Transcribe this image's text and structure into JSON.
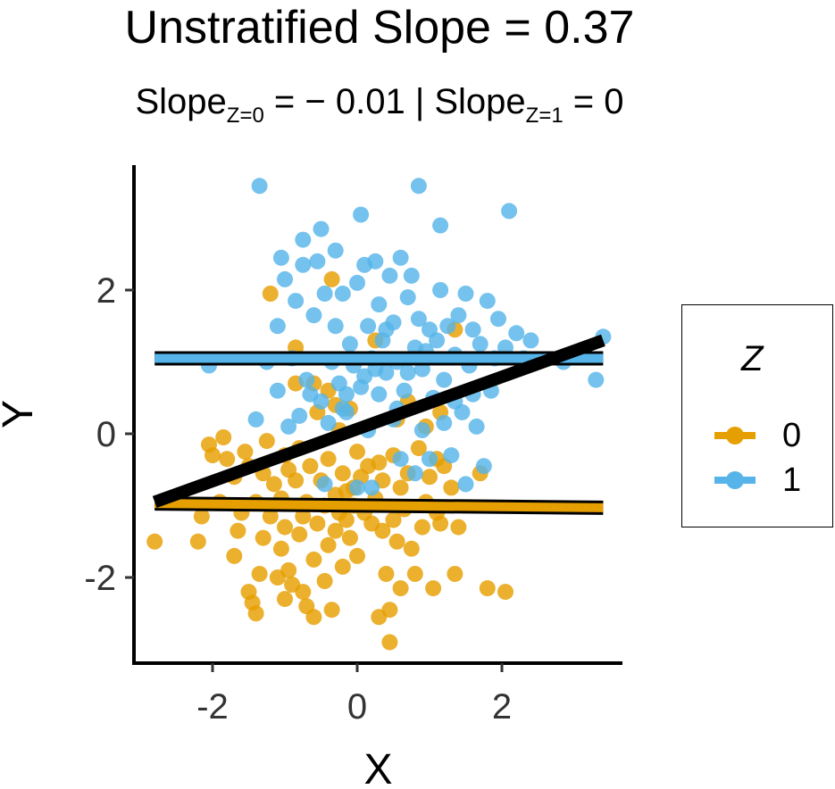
{
  "title": "Unstratified Slope = 0.37",
  "subtitle": {
    "part1": "Slope",
    "sub1": "Z=0",
    "part2": " = − 0.01 | Slope",
    "sub2": "Z=1",
    "part3": " = 0"
  },
  "legend": {
    "title": "Z",
    "items": [
      {
        "label": "0",
        "color": "#E69F00"
      },
      {
        "label": "1",
        "color": "#56B4E9"
      }
    ]
  },
  "chart_data": {
    "type": "scatter",
    "xlabel": "X",
    "ylabel": "Y",
    "xlim": [
      -3.1,
      3.6
    ],
    "ylim": [
      -3.2,
      3.7
    ],
    "xticks": [
      -2,
      0,
      2
    ],
    "yticks": [
      -2,
      0,
      2
    ],
    "xtick_labels": [
      "-2",
      "0",
      "2"
    ],
    "ytick_labels": [
      "-2",
      "0",
      "2"
    ],
    "grid": false,
    "legend_position": "right",
    "series": [
      {
        "name": "0",
        "color": "#E69F00",
        "points": [
          [
            -2.8,
            -1.5
          ],
          [
            -2.2,
            -1.5
          ],
          [
            -2.15,
            -1.15
          ],
          [
            -2.05,
            -0.15
          ],
          [
            -2.0,
            -0.3
          ],
          [
            -1.9,
            -0.95
          ],
          [
            -1.85,
            -0.05
          ],
          [
            -1.8,
            -0.35
          ],
          [
            -1.7,
            -1.7
          ],
          [
            -1.7,
            -0.6
          ],
          [
            -1.65,
            -1.35
          ],
          [
            -1.6,
            -1.1
          ],
          [
            -1.55,
            -0.25
          ],
          [
            -1.5,
            -0.45
          ],
          [
            -1.5,
            -2.2
          ],
          [
            -1.45,
            -2.35
          ],
          [
            -1.4,
            -2.5
          ],
          [
            -1.4,
            -0.95
          ],
          [
            -1.35,
            -1.95
          ],
          [
            -1.3,
            -0.55
          ],
          [
            -1.3,
            -1.45
          ],
          [
            -1.25,
            -0.1
          ],
          [
            -1.2,
            -1.15
          ],
          [
            -1.15,
            -0.7
          ],
          [
            -1.1,
            -2.0
          ],
          [
            -1.05,
            -1.6
          ],
          [
            -1.05,
            -0.9
          ],
          [
            -1.0,
            -0.3
          ],
          [
            -1.0,
            -1.3
          ],
          [
            -1.0,
            -2.3
          ],
          [
            -0.95,
            -0.5
          ],
          [
            -0.95,
            -1.9
          ],
          [
            -0.9,
            -2.1
          ],
          [
            -0.85,
            0.7
          ],
          [
            -0.85,
            -0.65
          ],
          [
            -0.8,
            -1.4
          ],
          [
            -0.8,
            -0.2
          ],
          [
            -0.75,
            -2.2
          ],
          [
            -0.75,
            -1.15
          ],
          [
            -0.7,
            -0.95
          ],
          [
            -0.7,
            -2.4
          ],
          [
            -0.65,
            -0.45
          ],
          [
            -0.6,
            -1.75
          ],
          [
            -0.6,
            -2.55
          ],
          [
            -0.55,
            0.3
          ],
          [
            -0.55,
            -1.25
          ],
          [
            -0.5,
            -0.65
          ],
          [
            -0.45,
            -1.0
          ],
          [
            -0.45,
            -2.05
          ],
          [
            -0.4,
            0.6
          ],
          [
            -0.4,
            -0.35
          ],
          [
            -0.4,
            -1.55
          ],
          [
            -0.35,
            -2.45
          ],
          [
            -0.3,
            -1.35
          ],
          [
            -0.3,
            -0.85
          ],
          [
            -0.25,
            0.05
          ],
          [
            -0.25,
            -1.1
          ],
          [
            -0.2,
            -1.85
          ],
          [
            -0.2,
            -0.55
          ],
          [
            -0.15,
            -1.2
          ],
          [
            -0.15,
            -0.8
          ],
          [
            -0.1,
            -1.45
          ],
          [
            -0.05,
            -0.75
          ],
          [
            -0.05,
            -1.0
          ],
          [
            0.0,
            -0.25
          ],
          [
            0.0,
            -1.7
          ],
          [
            0.05,
            -0.6
          ],
          [
            0.1,
            -1.1
          ],
          [
            0.15,
            -0.45
          ],
          [
            0.2,
            -1.25
          ],
          [
            0.25,
            -0.9
          ],
          [
            0.3,
            -2.55
          ],
          [
            0.35,
            -1.35
          ],
          [
            0.35,
            -0.65
          ],
          [
            0.4,
            -1.95
          ],
          [
            0.45,
            -2.45
          ],
          [
            0.5,
            -1.2
          ],
          [
            0.5,
            -0.3
          ],
          [
            0.55,
            -1.5
          ],
          [
            0.6,
            -0.75
          ],
          [
            0.6,
            -2.15
          ],
          [
            0.65,
            -1.05
          ],
          [
            0.7,
            -0.55
          ],
          [
            0.75,
            -1.6
          ],
          [
            0.8,
            -1.95
          ],
          [
            0.85,
            -0.2
          ],
          [
            0.9,
            -1.3
          ],
          [
            0.95,
            -0.95
          ],
          [
            1.0,
            -0.6
          ],
          [
            1.05,
            -2.15
          ],
          [
            1.1,
            -1.1
          ],
          [
            1.15,
            -1.25
          ],
          [
            1.2,
            -0.45
          ],
          [
            1.3,
            -0.75
          ],
          [
            1.35,
            -1.95
          ],
          [
            1.4,
            -1.3
          ],
          [
            1.7,
            -0.55
          ],
          [
            1.8,
            -2.15
          ],
          [
            2.05,
            -2.2
          ],
          [
            -1.2,
            1.95
          ],
          [
            -0.6,
            0.7
          ],
          [
            -0.35,
            2.15
          ],
          [
            -0.85,
            1.2
          ],
          [
            0.45,
            -2.9
          ],
          [
            0.25,
            1.3
          ],
          [
            0.55,
            0.2
          ],
          [
            0.7,
            0.45
          ],
          [
            0.3,
            -0.4
          ],
          [
            -0.3,
            0.4
          ],
          [
            1.35,
            1.45
          ],
          [
            1.15,
            0.3
          ],
          [
            -0.1,
            0.35
          ],
          [
            0.95,
            0.1
          ],
          [
            1.1,
            -0.35
          ]
        ]
      },
      {
        "name": "1",
        "color": "#56B4E9",
        "points": [
          [
            -2.05,
            0.95
          ],
          [
            -1.4,
            0.2
          ],
          [
            -1.35,
            3.45
          ],
          [
            -1.25,
            1.0
          ],
          [
            -1.1,
            0.6
          ],
          [
            -1.1,
            1.5
          ],
          [
            -1.05,
            2.45
          ],
          [
            -1.0,
            2.15
          ],
          [
            -0.95,
            0.1
          ],
          [
            -0.85,
            1.85
          ],
          [
            -0.8,
            0.25
          ],
          [
            -0.75,
            2.7
          ],
          [
            -0.75,
            2.35
          ],
          [
            -0.7,
            0.75
          ],
          [
            -0.65,
            0.55
          ],
          [
            -0.6,
            1.65
          ],
          [
            -0.55,
            2.4
          ],
          [
            -0.5,
            2.85
          ],
          [
            -0.5,
            0.45
          ],
          [
            -0.45,
            1.95
          ],
          [
            -0.4,
            0.15
          ],
          [
            -0.35,
            1.0
          ],
          [
            -0.3,
            2.55
          ],
          [
            -0.25,
            0.7
          ],
          [
            -0.2,
            1.95
          ],
          [
            -0.15,
            0.3
          ],
          [
            -0.1,
            1.25
          ],
          [
            -0.05,
            0.95
          ],
          [
            0.0,
            2.1
          ],
          [
            0.05,
            0.65
          ],
          [
            0.05,
            3.05
          ],
          [
            0.1,
            2.35
          ],
          [
            0.15,
            1.5
          ],
          [
            0.15,
            0.05
          ],
          [
            0.2,
            1.05
          ],
          [
            0.25,
            2.4
          ],
          [
            0.3,
            0.55
          ],
          [
            0.3,
            1.8
          ],
          [
            0.35,
            1.3
          ],
          [
            0.4,
            0.85
          ],
          [
            0.45,
            2.2
          ],
          [
            0.5,
            0.2
          ],
          [
            0.5,
            1.55
          ],
          [
            0.55,
            1.0
          ],
          [
            0.6,
            2.45
          ],
          [
            0.65,
            0.6
          ],
          [
            0.7,
            1.9
          ],
          [
            0.75,
            2.2
          ],
          [
            0.8,
            1.2
          ],
          [
            0.8,
            -0.55
          ],
          [
            0.85,
            3.45
          ],
          [
            0.9,
            0.9
          ],
          [
            0.9,
            0.05
          ],
          [
            1.0,
            1.45
          ],
          [
            1.05,
            0.5
          ],
          [
            1.1,
            1.3
          ],
          [
            1.15,
            2.0
          ],
          [
            1.15,
            2.9
          ],
          [
            1.2,
            0.75
          ],
          [
            1.25,
            1.5
          ],
          [
            1.3,
            -0.3
          ],
          [
            1.35,
            1.1
          ],
          [
            1.4,
            1.65
          ],
          [
            1.45,
            0.3
          ],
          [
            1.5,
            -0.7
          ],
          [
            1.5,
            1.95
          ],
          [
            1.55,
            0.95
          ],
          [
            1.6,
            1.45
          ],
          [
            1.65,
            0.1
          ],
          [
            1.7,
            1.25
          ],
          [
            1.75,
            -0.45
          ],
          [
            1.8,
            1.85
          ],
          [
            1.85,
            0.6
          ],
          [
            1.9,
            1.05
          ],
          [
            1.95,
            1.6
          ],
          [
            2.05,
            1.2
          ],
          [
            2.1,
            3.1
          ],
          [
            2.2,
            1.4
          ],
          [
            2.3,
            1.05
          ],
          [
            2.4,
            1.3
          ],
          [
            2.85,
            1.0
          ],
          [
            3.3,
            0.75
          ],
          [
            3.4,
            1.35
          ],
          [
            -0.9,
            1.05
          ],
          [
            -0.2,
            0.35
          ],
          [
            0.6,
            -0.35
          ],
          [
            0.0,
            -0.75
          ],
          [
            0.2,
            -0.75
          ],
          [
            1.6,
            0.55
          ],
          [
            1.0,
            -0.35
          ],
          [
            0.7,
            0.85
          ],
          [
            -0.45,
            -0.7
          ],
          [
            0.4,
            1.45
          ],
          [
            0.25,
            0.9
          ],
          [
            1.2,
            0.15
          ],
          [
            0.95,
            1.15
          ],
          [
            -0.15,
            0.55
          ],
          [
            0.55,
            0.35
          ],
          [
            0.1,
            0.8
          ],
          [
            -0.3,
            1.5
          ],
          [
            0.85,
            1.6
          ],
          [
            1.35,
            0.45
          ]
        ]
      }
    ],
    "fit_lines": [
      {
        "group": "0",
        "x": [
          -2.8,
          3.4
        ],
        "y": [
          -0.97,
          -1.03
        ],
        "color": "#E69F00"
      },
      {
        "group": "1",
        "x": [
          -2.8,
          3.4
        ],
        "y": [
          1.05,
          1.05
        ],
        "color": "#56B4E9"
      },
      {
        "group": "all",
        "x": [
          -2.8,
          3.4
        ],
        "y": [
          -0.95,
          1.3
        ],
        "color": "#000000"
      }
    ]
  }
}
